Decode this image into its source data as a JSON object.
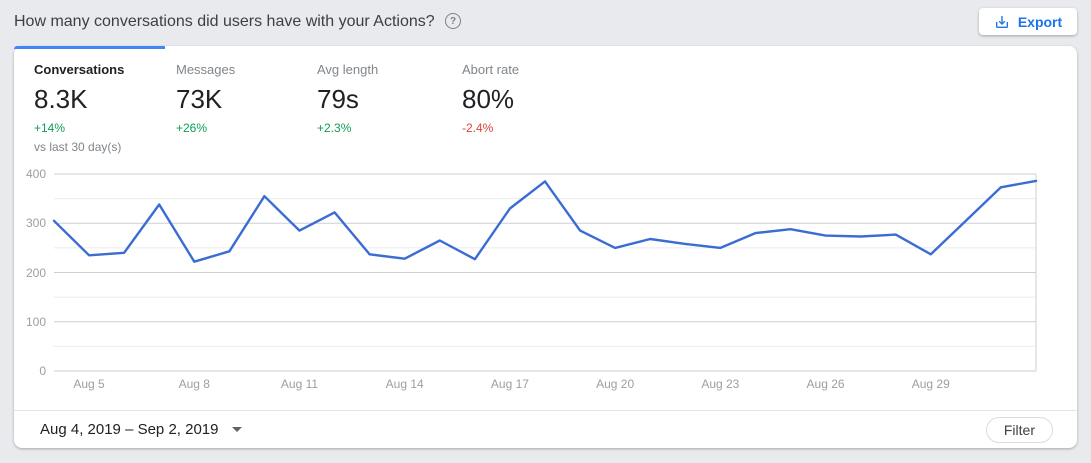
{
  "header": {
    "title": "How many conversations did users have with your Actions?",
    "help_glyph": "?",
    "help_icon": "help-circle-icon",
    "export": {
      "label": "Export",
      "icon": "download-icon",
      "color": "#1a73e8"
    }
  },
  "metrics": {
    "comparison_note": "vs last 30 day(s)",
    "delta_up_color": "#0f9d58",
    "delta_down_color": "#db4437",
    "items": [
      {
        "id": "conversations",
        "label": "Conversations",
        "value": "8.3K",
        "delta": "+14%",
        "trend": "up",
        "active": true
      },
      {
        "id": "messages",
        "label": "Messages",
        "value": "73K",
        "delta": "+26%",
        "trend": "up",
        "active": false
      },
      {
        "id": "avg-length",
        "label": "Avg length",
        "value": "79s",
        "delta": "+2.3%",
        "trend": "up",
        "active": false
      },
      {
        "id": "abort-rate",
        "label": "Abort rate",
        "value": "80%",
        "delta": "-2.4%",
        "trend": "down",
        "active": false
      }
    ]
  },
  "chart_data": {
    "type": "line",
    "title": "Conversations over time",
    "x": [
      "Aug 4",
      "Aug 5",
      "Aug 6",
      "Aug 7",
      "Aug 8",
      "Aug 9",
      "Aug 10",
      "Aug 11",
      "Aug 12",
      "Aug 13",
      "Aug 14",
      "Aug 15",
      "Aug 16",
      "Aug 17",
      "Aug 18",
      "Aug 19",
      "Aug 20",
      "Aug 21",
      "Aug 22",
      "Aug 23",
      "Aug 24",
      "Aug 25",
      "Aug 26",
      "Aug 27",
      "Aug 28",
      "Aug 29",
      "Aug 30",
      "Aug 31",
      "Sep 1"
    ],
    "series": [
      {
        "name": "Conversations",
        "color": "#3b6cd4",
        "values": [
          305,
          235,
          240,
          338,
          222,
          243,
          355,
          285,
          322,
          237,
          228,
          265,
          227,
          330,
          385,
          285,
          250,
          268,
          258,
          250,
          280,
          288,
          275,
          273,
          277,
          237,
          305,
          373,
          386
        ]
      }
    ],
    "x_tick_labels": [
      "Aug 5",
      "Aug 8",
      "Aug 11",
      "Aug 14",
      "Aug 17",
      "Aug 20",
      "Aug 23",
      "Aug 26",
      "Aug 29"
    ],
    "x_tick_indices": [
      1,
      4,
      7,
      10,
      13,
      16,
      19,
      22,
      25
    ],
    "y_ticks": [
      0,
      100,
      200,
      300,
      400
    ],
    "y_minor_step": 50,
    "ylim": [
      0,
      400
    ],
    "grid": "horizontal",
    "legend": "none",
    "grid_major_color": "#cdcfd3",
    "grid_minor_color": "#eaebed"
  },
  "footer": {
    "date_range": "Aug 4, 2019 – Sep 2, 2019",
    "dropdown_icon": "caret-down-icon",
    "filter_label": "Filter"
  },
  "colors": {
    "page_bg": "#e8eaed",
    "card_bg": "#ffffff",
    "accent_blue": "#1a73e8",
    "tab_indicator": "#4285f4"
  }
}
